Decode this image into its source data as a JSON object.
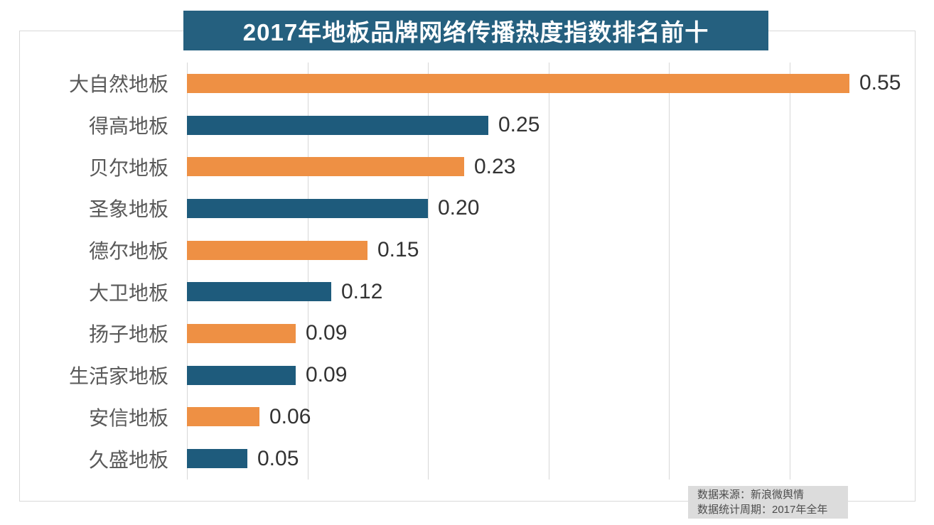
{
  "chart_data": {
    "type": "bar",
    "orientation": "horizontal",
    "title": "2017年地板品牌网络传播热度指数排名前十",
    "categories": [
      "大自然地板",
      "得高地板",
      "贝尔地板",
      "圣象地板",
      "德尔地板",
      "大卫地板",
      "扬子地板",
      "生活家地板",
      "安信地板",
      "久盛地板"
    ],
    "values": [
      0.55,
      0.25,
      0.23,
      0.2,
      0.15,
      0.12,
      0.09,
      0.09,
      0.06,
      0.05
    ],
    "value_labels": [
      "0.55",
      "0.25",
      "0.23",
      "0.20",
      "0.15",
      "0.12",
      "0.09",
      "0.09",
      "0.06",
      "0.05"
    ],
    "series_colors": [
      "#ee9044",
      "#1e5b7c"
    ],
    "xlabel": "",
    "ylabel": "",
    "xlim": [
      0,
      0.6
    ],
    "grid": true,
    "grid_values": [
      0,
      0.1,
      0.2,
      0.3,
      0.4,
      0.5
    ],
    "legend": "none"
  },
  "colors": {
    "title_background": "#25607f",
    "title_text": "#ffffff",
    "bar_orange": "#ee9044",
    "bar_teal": "#1e5b7c",
    "gridline": "#d7d7d7",
    "frame_border": "#d9d9d9",
    "category_label": "#595959",
    "value_label": "#333333",
    "footer_background": "#dcdcdc",
    "footer_text": "#4d4d4d"
  },
  "footer": {
    "source_line": "数据来源：新浪微舆情",
    "period_line": "数据统计周期：2017年全年"
  }
}
